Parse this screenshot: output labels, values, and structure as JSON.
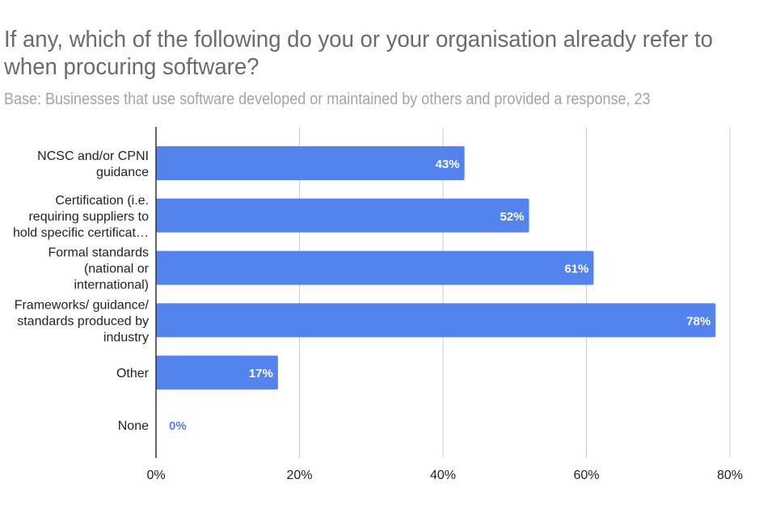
{
  "chart_data": {
    "type": "bar",
    "orientation": "horizontal",
    "title": "If any, which of the following do you or your organisation already refer to when procuring software?",
    "subtitle": "Base: Businesses that use software developed or maintained by others and provided a response, 23",
    "categories": [
      [
        "NCSC and/or CPNI",
        "guidance"
      ],
      [
        "Certification (i.e.",
        "requiring suppliers to",
        "hold specific certificat…"
      ],
      [
        "Formal standards",
        "(national or",
        "international)"
      ],
      [
        "Frameworks/ guidance/",
        "standards produced by",
        "industry"
      ],
      [
        "Other"
      ],
      [
        "None"
      ]
    ],
    "values": [
      43,
      52,
      61,
      78,
      17,
      0
    ],
    "data_labels": [
      "43%",
      "52%",
      "61%",
      "78%",
      "17%",
      "0%"
    ],
    "x_ticks": [
      "0%",
      "20%",
      "40%",
      "60%",
      "80%"
    ],
    "tick_values": [
      0,
      20,
      40,
      60,
      80
    ],
    "xlim": [
      0,
      80
    ],
    "grid": true,
    "bar_color": "#5383ec",
    "inside_label_color": "#ffffff",
    "outside_label_color": "#5383ec"
  }
}
